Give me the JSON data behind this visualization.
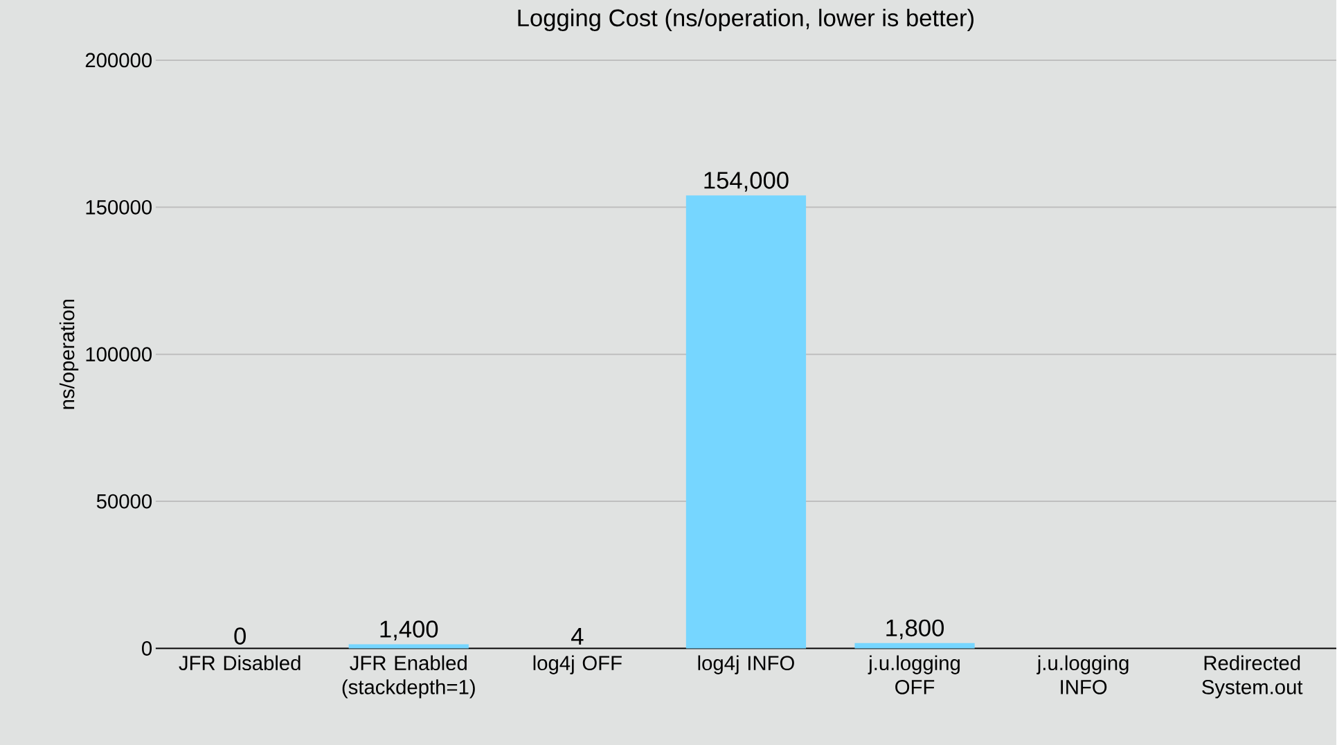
{
  "chart_data": {
    "type": "bar",
    "title": "Logging Cost (ns/operation, lower is better)",
    "ylabel": "ns/operation",
    "categories": [
      "JFR Disabled",
      "JFR Enabled (stackdepth=1)",
      "log4j OFF",
      "log4j INFO",
      "j.u.logging OFF",
      "j.u.logging INFO",
      "Redirected System.out"
    ],
    "values": [
      0,
      1400,
      4,
      154000,
      1800,
      null,
      null
    ],
    "value_labels": [
      "0",
      "1,400",
      "4",
      "154,000",
      "1,800",
      null,
      null
    ],
    "color": "#76d6ff",
    "ylim": [
      0,
      200000
    ],
    "yticks": [
      0,
      50000,
      100000,
      150000,
      200000
    ],
    "grid": "y"
  }
}
